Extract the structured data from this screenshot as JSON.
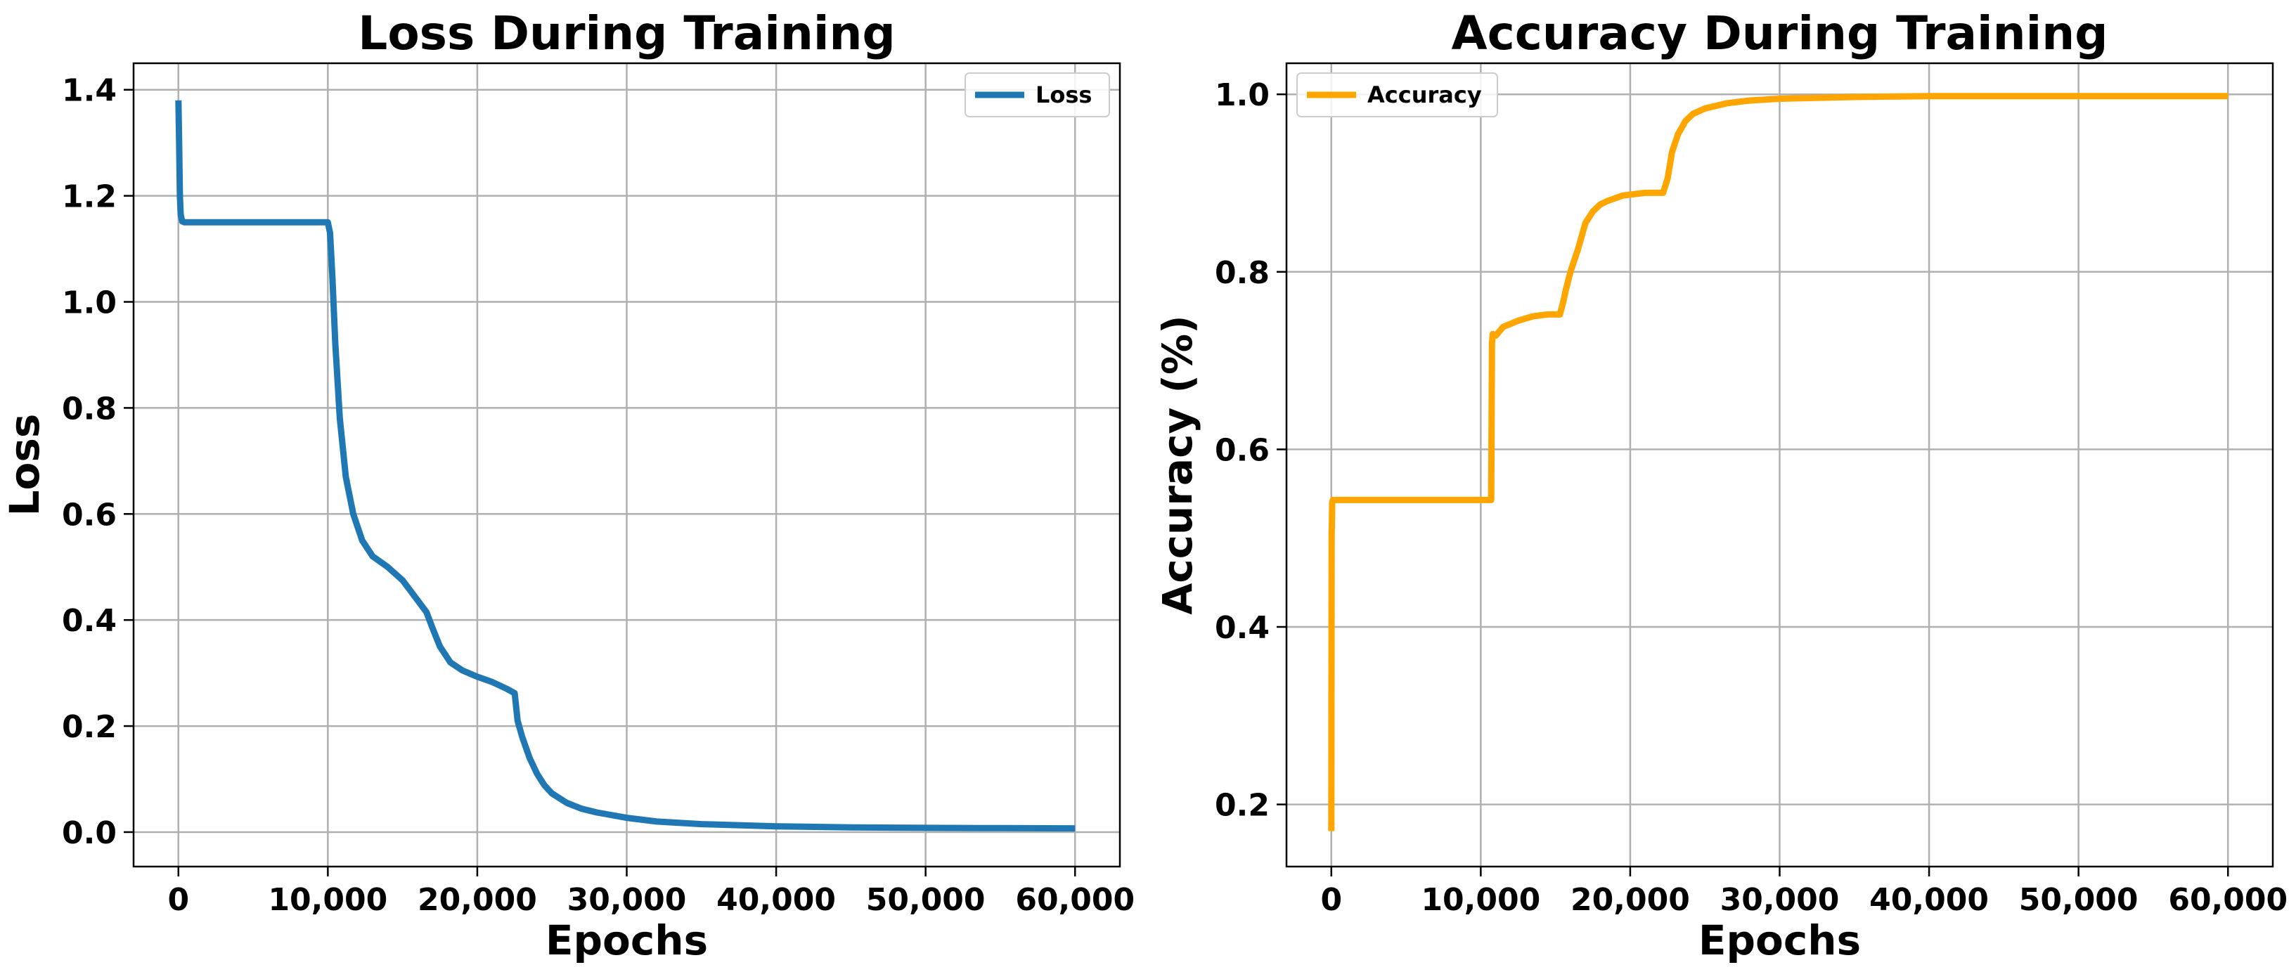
{
  "chart_data": [
    {
      "type": "line",
      "title": "Loss During Training",
      "xlabel": "Epochs",
      "ylabel": "Loss",
      "xlim": [
        -3000,
        63000
      ],
      "ylim": [
        -0.065,
        1.45
      ],
      "xticks": [
        0,
        10000,
        20000,
        30000,
        40000,
        50000,
        60000
      ],
      "xtick_labels": [
        "0",
        "10,000",
        "20,000",
        "30,000",
        "40,000",
        "50,000",
        "60,000"
      ],
      "yticks": [
        0.0,
        0.2,
        0.4,
        0.6,
        0.8,
        1.0,
        1.2,
        1.4
      ],
      "ytick_labels": [
        "0.0",
        "0.2",
        "0.4",
        "0.6",
        "0.8",
        "1.0",
        "1.2",
        "1.4"
      ],
      "grid": true,
      "legend_position": "top-right",
      "series": [
        {
          "name": "Loss",
          "color": "#1f77b4",
          "x": [
            0,
            50,
            100,
            150,
            250,
            400,
            10000,
            10150,
            10300,
            10500,
            10800,
            11200,
            11700,
            12300,
            13000,
            14000,
            15000,
            15800,
            16600,
            17000,
            17500,
            18200,
            19000,
            20000,
            21000,
            22000,
            22500,
            22700,
            23000,
            23500,
            24000,
            24500,
            25000,
            26000,
            27000,
            28000,
            30000,
            32000,
            35000,
            40000,
            45000,
            50000,
            55000,
            60000
          ],
          "y": [
            1.38,
            1.3,
            1.2,
            1.165,
            1.152,
            1.15,
            1.15,
            1.13,
            1.05,
            0.92,
            0.78,
            0.67,
            0.6,
            0.55,
            0.52,
            0.5,
            0.475,
            0.445,
            0.415,
            0.385,
            0.35,
            0.32,
            0.305,
            0.293,
            0.283,
            0.27,
            0.262,
            0.21,
            0.18,
            0.14,
            0.11,
            0.088,
            0.073,
            0.055,
            0.044,
            0.037,
            0.027,
            0.02,
            0.015,
            0.011,
            0.009,
            0.008,
            0.0075,
            0.007
          ]
        }
      ]
    },
    {
      "type": "line",
      "title": "Accuracy During Training",
      "xlabel": "Epochs",
      "ylabel": "Accuracy (%)",
      "xlim": [
        -3000,
        63000
      ],
      "ylim": [
        0.13,
        1.035
      ],
      "xticks": [
        0,
        10000,
        20000,
        30000,
        40000,
        50000,
        60000
      ],
      "xtick_labels": [
        "0",
        "10,000",
        "20,000",
        "30,000",
        "40,000",
        "50,000",
        "60,000"
      ],
      "yticks": [
        0.2,
        0.4,
        0.6,
        0.8,
        1.0
      ],
      "ytick_labels": [
        "0.2",
        "0.4",
        "0.6",
        "0.8",
        "1.0"
      ],
      "grid": true,
      "legend_position": "top-left",
      "series": [
        {
          "name": "Accuracy",
          "color": "#ffa500",
          "x": [
            0,
            20,
            60,
            100,
            10700,
            10750,
            10800,
            11000,
            11500,
            12500,
            13500,
            14500,
            15300,
            15500,
            15700,
            16000,
            16500,
            17000,
            17500,
            18000,
            18500,
            19500,
            21000,
            22200,
            22500,
            22800,
            23200,
            23700,
            24200,
            25000,
            26500,
            28000,
            30000,
            35000,
            40000,
            50000,
            60000
          ],
          "y": [
            0.17,
            0.5,
            0.54,
            0.543,
            0.543,
            0.72,
            0.73,
            0.728,
            0.738,
            0.745,
            0.75,
            0.752,
            0.752,
            0.765,
            0.78,
            0.8,
            0.825,
            0.855,
            0.868,
            0.876,
            0.88,
            0.886,
            0.889,
            0.889,
            0.905,
            0.935,
            0.955,
            0.97,
            0.978,
            0.984,
            0.99,
            0.993,
            0.995,
            0.997,
            0.998,
            0.998,
            0.998
          ]
        }
      ]
    }
  ]
}
